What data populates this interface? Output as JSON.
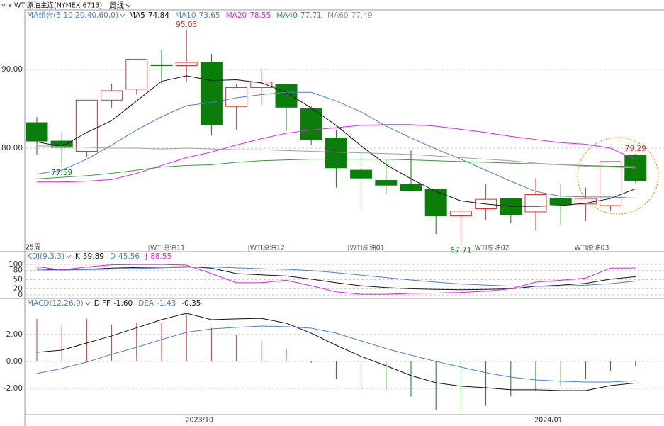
{
  "header": {
    "symbol": "WTI原油主连(NYMEX 6713)",
    "period": "周线"
  },
  "chart_data": [
    {
      "type": "candlestick",
      "title": "MA组合(5,10,20,40,60,0)",
      "period_label": "25周",
      "categories": [
        null,
        null,
        null,
        null,
        null,
        "WTI原油11",
        null,
        null,
        null,
        "WTI原油12",
        null,
        null,
        null,
        "WTI原油01",
        null,
        null,
        null,
        null,
        "WTI原油02",
        null,
        null,
        null,
        "WTI原油03",
        null,
        null
      ],
      "open": [
        83.24,
        80.9,
        79.6,
        86.1,
        87.5,
        90.6,
        90.5,
        90.9,
        85.3,
        87.7,
        88.1,
        85.0,
        81.3,
        77.2,
        75.9,
        75.4,
        74.8,
        71.4,
        72.3,
        73.6,
        71.9,
        73.6,
        72.9,
        72.7,
        79.1
      ],
      "high": [
        83.96,
        82.0,
        86.1,
        88.2,
        91.3,
        92.5,
        95.03,
        92.0,
        88.2,
        90.0,
        88.1,
        85.3,
        82.3,
        79.9,
        78.6,
        79.7,
        74.8,
        72.4,
        75.4,
        73.6,
        76.2,
        75.4,
        75.0,
        78.3,
        79.29
      ],
      "low": [
        79.1,
        77.59,
        78.9,
        85.1,
        86.8,
        88.2,
        88.4,
        81.6,
        82.3,
        85.5,
        82.2,
        80.4,
        75.0,
        72.3,
        74.1,
        74.5,
        69.1,
        67.71,
        70.9,
        70.5,
        69.5,
        70.3,
        70.7,
        72.0,
        75.6
      ],
      "close": [
        80.9,
        80.1,
        86.1,
        87.3,
        91.3,
        90.5,
        90.9,
        83.0,
        87.7,
        88.4,
        85.2,
        81.1,
        77.5,
        76.2,
        75.3,
        74.6,
        71.4,
        72.0,
        73.5,
        71.5,
        74.1,
        72.8,
        73.6,
        78.3,
        75.9
      ],
      "high_labels": [
        null,
        null,
        null,
        null,
        null,
        null,
        "95.03",
        null,
        null,
        null,
        null,
        null,
        null,
        null,
        null,
        null,
        null,
        null,
        null,
        null,
        null,
        null,
        null,
        null,
        "79.29"
      ],
      "low_labels": [
        null,
        "77.59",
        null,
        null,
        null,
        null,
        null,
        null,
        null,
        null,
        null,
        null,
        null,
        null,
        null,
        null,
        null,
        "67.71",
        null,
        null,
        null,
        null,
        null,
        null,
        null
      ],
      "up_color": "#e03030",
      "down_color": "#0a7d0a",
      "series": [
        {
          "name": "MA5",
          "color": "#111111",
          "legend_color": "#111111",
          "values": [
            80.8,
            80.2,
            82.0,
            83.5,
            86.0,
            88.5,
            89.2,
            88.6,
            88.7,
            88.3,
            87.1,
            85.1,
            82.9,
            80.3,
            77.9,
            76.1,
            74.5,
            73.3,
            72.9,
            72.6,
            72.6,
            72.7,
            73.0,
            73.6,
            74.84
          ]
        },
        {
          "name": "MA10",
          "color": "#4a7fd4",
          "legend_color": "#4a7fd4",
          "values": [
            76.7,
            77.2,
            78.6,
            80.4,
            82.3,
            84.0,
            85.4,
            85.8,
            86.4,
            86.8,
            87.1,
            87.1,
            86.0,
            84.6,
            82.8,
            81.3,
            79.9,
            78.6,
            77.2,
            75.8,
            74.5,
            73.9,
            73.8,
            73.8,
            73.65
          ]
        },
        {
          "name": "MA20",
          "color": "#e020e0",
          "legend_color": "#e020e0",
          "values": [
            75.7,
            75.7,
            75.8,
            76.0,
            76.8,
            77.8,
            78.8,
            79.5,
            80.4,
            81.2,
            81.9,
            82.3,
            82.6,
            82.9,
            83.0,
            83.0,
            82.8,
            82.4,
            82.0,
            81.5,
            81.1,
            80.7,
            80.5,
            80.0,
            78.55
          ]
        },
        {
          "name": "MA40",
          "color": "#3a9a3a",
          "legend_color": "#3a9a3a",
          "values": [
            76.1,
            76.3,
            76.5,
            76.8,
            77.2,
            77.6,
            77.8,
            77.9,
            78.2,
            78.4,
            78.5,
            78.6,
            78.6,
            78.6,
            78.6,
            78.5,
            78.4,
            78.3,
            78.2,
            78.1,
            78.0,
            77.9,
            77.8,
            77.7,
            77.71
          ]
        },
        {
          "name": "MA60",
          "color": "#a0a0a0",
          "legend_color": "#909090",
          "values": [
            80.3,
            80.2,
            80.1,
            80.0,
            80.0,
            79.9,
            80.0,
            79.9,
            79.8,
            79.8,
            79.7,
            79.6,
            79.5,
            79.4,
            79.3,
            79.2,
            79.0,
            78.8,
            78.6,
            78.4,
            78.1,
            77.9,
            77.7,
            77.6,
            77.49
          ]
        }
      ],
      "ylim": [
        67.75,
        97.57
      ],
      "yticks": [
        {
          "value": 80,
          "label": "80.00"
        },
        {
          "value": 90,
          "label": "90.00"
        }
      ],
      "grid": true
    },
    {
      "type": "line",
      "title": "KDJ(9,3,3)",
      "series": [
        {
          "name": "K",
          "color": "#111111",
          "values": [
            86,
            82,
            84,
            88,
            90,
            92,
            93,
            88,
            70,
            66,
            62,
            52,
            40,
            30,
            24,
            20,
            18,
            17,
            18,
            20,
            28,
            32,
            38,
            52,
            59.89
          ]
        },
        {
          "name": "D",
          "color": "#4a7fd4",
          "values": [
            82,
            82,
            83,
            85,
            87,
            89,
            91,
            92,
            89,
            86,
            84,
            80,
            73,
            65,
            57,
            49,
            42,
            36,
            32,
            29,
            28,
            29,
            32,
            37,
            45.56
          ]
        },
        {
          "name": "J",
          "color": "#e020e0",
          "values": [
            93,
            82,
            92,
            99,
            100,
            100,
            98,
            70,
            40,
            40,
            48,
            30,
            10,
            2,
            2,
            5,
            6,
            8,
            12,
            20,
            42,
            48,
            55,
            88,
            88.55
          ]
        }
      ],
      "ylim": [
        -9.3,
        142.3
      ],
      "yticks": [
        0,
        20,
        50,
        80,
        100
      ],
      "grid": true
    },
    {
      "type": "macd",
      "title": "MACD(12,26,9)",
      "categories": [
        null,
        null,
        null,
        null,
        null,
        null,
        "2023/10",
        null,
        null,
        null,
        null,
        null,
        null,
        null,
        null,
        null,
        null,
        null,
        null,
        null,
        "2024/01",
        null,
        null,
        null,
        null
      ],
      "series": [
        {
          "name": "DIFF",
          "color": "#111111",
          "values": [
            0.68,
            0.84,
            1.37,
            1.9,
            2.5,
            3.1,
            3.58,
            3.1,
            3.16,
            3.2,
            2.84,
            2.1,
            1.2,
            0.37,
            -0.32,
            -1.05,
            -1.58,
            -1.84,
            -1.95,
            -2.1,
            -2.1,
            -2.16,
            -2.16,
            -1.79,
            -1.6
          ],
          "value_labels": [
            null,
            null,
            null,
            null,
            null,
            null,
            null,
            null,
            null,
            null,
            null,
            null,
            null,
            null,
            null,
            null,
            null,
            null,
            null,
            null,
            null,
            null,
            null,
            null,
            "-1.60"
          ]
        },
        {
          "name": "DEA",
          "color": "#4a7fd4",
          "values": [
            -0.89,
            -0.53,
            -0.05,
            0.53,
            1.05,
            1.63,
            2.16,
            2.42,
            2.53,
            2.63,
            2.58,
            2.47,
            2.1,
            1.53,
            0.95,
            0.47,
            0.0,
            -0.42,
            -0.84,
            -1.16,
            -1.37,
            -1.47,
            -1.53,
            -1.53,
            -1.43
          ]
        }
      ],
      "histogram": {
        "values": [
          3.16,
          2.74,
          3.16,
          2.74,
          2.9,
          2.9,
          3.6,
          2.5,
          2.0,
          1.55,
          0.95,
          -0.1,
          -1.3,
          -2.1,
          -2.1,
          -2.6,
          -3.6,
          -3.7,
          -3.3,
          -2.6,
          -2.2,
          -1.85,
          -1.3,
          -0.7,
          -0.35
        ],
        "up_color": "#e03030",
        "down_color": "#0a7d0a",
        "legend_color": "#111111"
      },
      "ylim": [
        -3.95,
        4.68
      ],
      "yticks": [
        {
          "value": -2,
          "label": "-2.00"
        },
        {
          "value": 0,
          "label": "0.00"
        },
        {
          "value": 2,
          "label": "2.00"
        }
      ],
      "grid": true
    }
  ]
}
